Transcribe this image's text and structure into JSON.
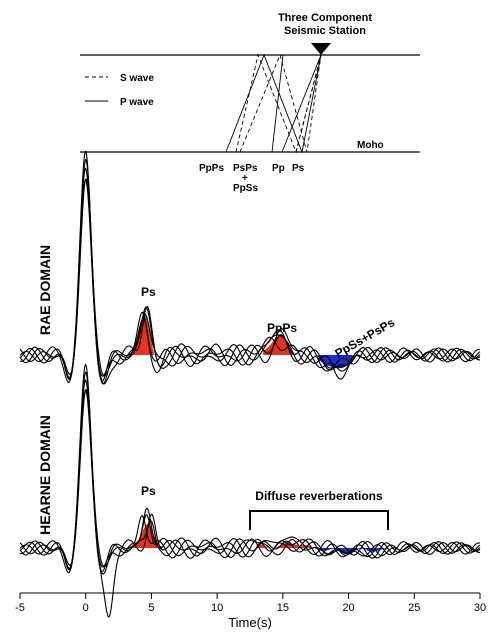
{
  "chart_data": {
    "type": "line",
    "xlabel": "Time(s)",
    "ylabel": "",
    "xlim": [
      -5,
      30
    ],
    "x_ticks": [
      "-5",
      "0",
      "5",
      "10",
      "15",
      "20",
      "25",
      "30"
    ],
    "grid": false,
    "panels": [
      {
        "name": "RAE DOMAIN",
        "phases": [
          {
            "label": "Ps",
            "x": 4.5,
            "polarity": "positive"
          },
          {
            "label": "PpPs",
            "x": 14.8,
            "polarity": "positive"
          },
          {
            "label": "PpSs+PsPs",
            "x": 19.0,
            "polarity": "negative"
          }
        ],
        "traces": 5
      },
      {
        "name": "HEARNE DOMAIN",
        "phases": [
          {
            "label": "Ps",
            "x": 4.5,
            "polarity": "positive"
          }
        ],
        "bracket_label": "Diffuse reverberations",
        "bracket_range": [
          12.5,
          23.0
        ],
        "traces": 5
      }
    ],
    "fill_colors": {
      "positive": "#e8321e",
      "negative": "#1c2fd6"
    },
    "schematic": {
      "station_label_line1": "Three Component",
      "station_label_line2": "Seismic Station",
      "legend": [
        {
          "label": "S wave",
          "style": "dashed"
        },
        {
          "label": "P wave",
          "style": "solid"
        }
      ],
      "moho_label": "Moho",
      "phase_labels": [
        "PpPs",
        "PsPs",
        "+",
        "PpSs",
        "Pp",
        "Ps"
      ]
    }
  }
}
